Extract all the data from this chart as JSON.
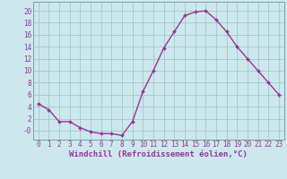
{
  "x": [
    0,
    1,
    2,
    3,
    4,
    5,
    6,
    7,
    8,
    9,
    10,
    11,
    12,
    13,
    14,
    15,
    16,
    17,
    18,
    19,
    20,
    21,
    22,
    23
  ],
  "y": [
    4.5,
    3.5,
    1.5,
    1.5,
    0.5,
    -0.2,
    -0.5,
    -0.5,
    -0.8,
    1.5,
    6.5,
    10.0,
    13.8,
    16.5,
    19.2,
    19.8,
    20.0,
    18.5,
    16.5,
    14.0,
    12.0,
    10.0,
    8.0,
    6.0
  ],
  "line_color": "#993399",
  "marker": "D",
  "marker_size": 2.0,
  "line_width": 1.0,
  "bg_color": "#cce8ec",
  "grid_color": "#9bbfc4",
  "xlabel": "Windchill (Refroidissement éolien,°C)",
  "xlabel_color": "#993399",
  "xlabel_fontsize": 6.5,
  "tick_color": "#993399",
  "tick_fontsize": 5.5,
  "ytick_vals": [
    0,
    2,
    4,
    6,
    8,
    10,
    12,
    14,
    16,
    18,
    20
  ],
  "ytick_labels": [
    "-0",
    "2",
    "4",
    "6",
    "8",
    "10",
    "12",
    "14",
    "16",
    "18",
    "20"
  ],
  "ylim": [
    -1.5,
    21.5
  ],
  "xlim": [
    -0.5,
    23.5
  ],
  "xtick_labels": [
    "0",
    "1",
    "2",
    "3",
    "4",
    "5",
    "6",
    "7",
    "8",
    "9",
    "10",
    "11",
    "12",
    "13",
    "14",
    "15",
    "16",
    "17",
    "18",
    "19",
    "20",
    "21",
    "22",
    "23"
  ],
  "spine_color": "#7a9fa5"
}
